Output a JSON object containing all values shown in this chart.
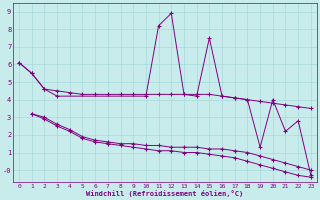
{
  "xlabel": "Windchill (Refroidissement éolien,°C)",
  "background_color": "#c8ecec",
  "line_color": "#800080",
  "grid_color": "#a8d8d8",
  "xlim": [
    -0.5,
    23.5
  ],
  "ylim": [
    -0.7,
    9.5
  ],
  "xticks": [
    0,
    1,
    2,
    3,
    4,
    5,
    6,
    7,
    8,
    9,
    10,
    11,
    12,
    13,
    14,
    15,
    16,
    17,
    18,
    19,
    20,
    21,
    22,
    23
  ],
  "yticks": [
    0,
    1,
    2,
    3,
    4,
    5,
    6,
    7,
    8,
    9
  ],
  "lines": [
    {
      "x": [
        0,
        1,
        2,
        3,
        10,
        11,
        12,
        13,
        14,
        15,
        16,
        17,
        18,
        19,
        20,
        21,
        22,
        23
      ],
      "y": [
        6.1,
        5.5,
        4.6,
        4.2,
        4.2,
        8.2,
        8.9,
        4.3,
        4.2,
        7.5,
        4.2,
        4.1,
        4.0,
        1.3,
        4.0,
        2.2,
        2.8,
        -0.3
      ]
    },
    {
      "x": [
        0,
        1,
        2,
        3,
        4,
        5,
        6,
        7,
        8,
        9,
        10,
        11,
        12,
        13,
        14,
        15,
        16,
        17,
        18,
        19,
        20,
        21,
        22,
        23
      ],
      "y": [
        6.1,
        5.5,
        4.6,
        4.5,
        4.4,
        4.3,
        4.3,
        4.3,
        4.3,
        4.3,
        4.3,
        4.3,
        4.3,
        4.3,
        4.3,
        4.3,
        4.2,
        4.1,
        4.0,
        3.9,
        3.8,
        3.7,
        3.6,
        3.5
      ]
    },
    {
      "x": [
        1,
        2,
        3,
        4,
        5,
        6,
        7,
        8,
        9,
        10,
        11,
        12,
        13,
        14,
        15,
        16,
        17,
        18,
        19,
        20,
        21,
        22,
        23
      ],
      "y": [
        3.2,
        2.9,
        2.5,
        2.2,
        1.8,
        1.6,
        1.5,
        1.4,
        1.3,
        1.2,
        1.1,
        1.1,
        1.0,
        1.0,
        0.9,
        0.8,
        0.7,
        0.5,
        0.3,
        0.1,
        -0.1,
        -0.3,
        -0.4
      ]
    },
    {
      "x": [
        1,
        2,
        3,
        4,
        5,
        6,
        7,
        8,
        9,
        10,
        11,
        12,
        13,
        14,
        15,
        16,
        17,
        18,
        19,
        20,
        21,
        22,
        23
      ],
      "y": [
        3.2,
        3.0,
        2.6,
        2.3,
        1.9,
        1.7,
        1.6,
        1.5,
        1.5,
        1.4,
        1.4,
        1.3,
        1.3,
        1.3,
        1.2,
        1.2,
        1.1,
        1.0,
        0.8,
        0.6,
        0.4,
        0.2,
        0.0
      ]
    }
  ]
}
